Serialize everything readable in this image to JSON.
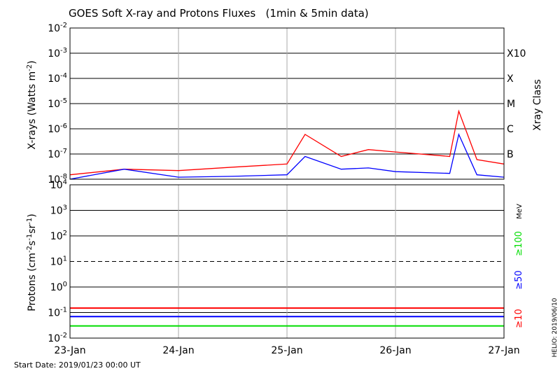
{
  "chart_data": [
    {
      "type": "line",
      "title": "GOES Soft X-ray and Protons Fluxes   (1min & 5min data)",
      "ylabel_prefix": "X-rays (Watts m",
      "ylabel_exp": "-2",
      "ylabel_suffix": ")",
      "yscale": "log",
      "ylim": [
        1e-08,
        0.01
      ],
      "y_ticks": [
        {
          "base": "10",
          "exp": "-2",
          "value": 0.01
        },
        {
          "base": "10",
          "exp": "-3",
          "value": 0.001
        },
        {
          "base": "10",
          "exp": "-4",
          "value": 0.0001
        },
        {
          "base": "10",
          "exp": "-5",
          "value": 1e-05
        },
        {
          "base": "10",
          "exp": "-6",
          "value": 1e-06
        },
        {
          "base": "10",
          "exp": "-7",
          "value": 1e-07
        },
        {
          "base": "10",
          "exp": "-8",
          "value": 1e-08
        }
      ],
      "right_axis_label": "Xray Class",
      "class_labels": [
        {
          "label": "X10",
          "value": 0.001
        },
        {
          "label": "X",
          "value": 0.0001
        },
        {
          "label": "M",
          "value": 1e-05
        },
        {
          "label": "C",
          "value": 1e-06
        },
        {
          "label": "B",
          "value": 1e-07
        }
      ],
      "x": [
        "2019-01-23",
        "2019-01-23T12",
        "2019-01-24",
        "2019-01-24T12",
        "2019-01-25",
        "2019-01-25T04",
        "2019-01-25T12",
        "2019-01-25T18",
        "2019-01-26",
        "2019-01-26T12",
        "2019-01-26T14",
        "2019-01-26T18",
        "2019-01-27"
      ],
      "series": [
        {
          "color": "#ff0000",
          "values": [
            1.5e-08,
            2.5e-08,
            2.2e-08,
            3e-08,
            4e-08,
            6e-07,
            8e-08,
            1.5e-07,
            1.2e-07,
            8e-08,
            5e-06,
            6e-08,
            4e-08
          ]
        },
        {
          "color": "#0000ff",
          "values": [
            1e-08,
            2.5e-08,
            1.2e-08,
            1.3e-08,
            1.5e-08,
            8e-08,
            2.5e-08,
            2.8e-08,
            2e-08,
            1.7e-08,
            6e-07,
            1.5e-08,
            1.2e-08
          ]
        }
      ]
    },
    {
      "type": "line",
      "ylabel_prefix": "Protons (cm",
      "ylabel_exp1": "-2",
      "ylabel_mid1": "s",
      "ylabel_exp2": "-1",
      "ylabel_mid2": "sr",
      "ylabel_exp3": "-1",
      "ylabel_suffix": ")",
      "yscale": "log",
      "ylim": [
        0.01,
        10000
      ],
      "y_ticks": [
        {
          "base": "10",
          "exp": "4",
          "value": 10000.0
        },
        {
          "base": "10",
          "exp": "3",
          "value": 1000.0
        },
        {
          "base": "10",
          "exp": "2",
          "value": 100.0
        },
        {
          "base": "10",
          "exp": "1",
          "value": 10.0
        },
        {
          "base": "10",
          "exp": "0",
          "value": 1
        },
        {
          "base": "10",
          "exp": "-1",
          "value": 0.1
        },
        {
          "base": "10",
          "exp": "-2",
          "value": 0.01
        }
      ],
      "threshold": 10,
      "unit_label": "MeV",
      "series": [
        {
          "name": "≥100",
          "color": "#00dd00",
          "values": [
            0.03,
            0.03,
            0.03,
            0.03,
            0.03
          ]
        },
        {
          "name": "≥50",
          "color": "#0000ff",
          "values": [
            0.07,
            0.07,
            0.07,
            0.07,
            0.07
          ]
        },
        {
          "name": "≥10",
          "color": "#ff0000",
          "values": [
            0.15,
            0.15,
            0.15,
            0.15,
            0.15
          ]
        }
      ],
      "x": [
        "2019-01-23",
        "2019-01-24",
        "2019-01-25",
        "2019-01-26",
        "2019-01-27"
      ],
      "x_tick_labels": [
        "23-Jan",
        "24-Jan",
        "25-Jan",
        "26-Jan",
        "27-Jan"
      ]
    }
  ],
  "footer": {
    "start_date": "Start Date: 2019/01/23 00:00 UT",
    "credit": "HELIO: 2019/06/10"
  }
}
